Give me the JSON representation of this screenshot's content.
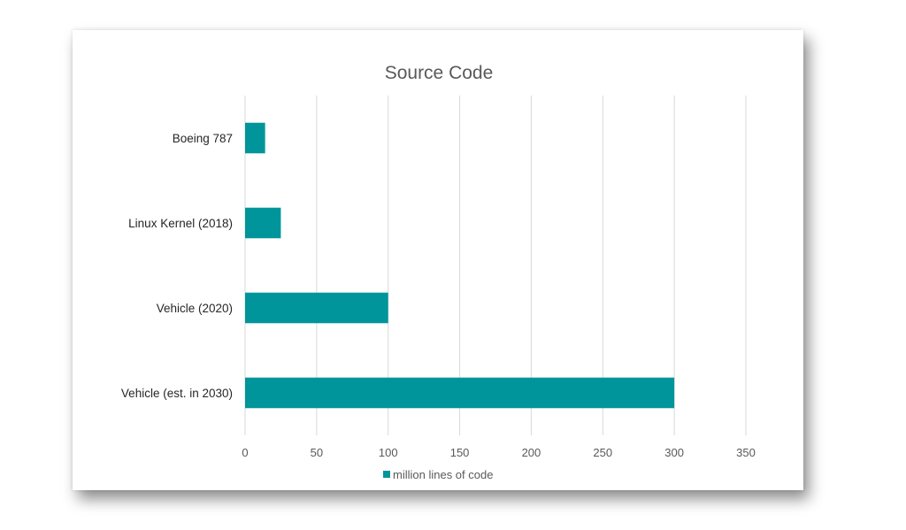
{
  "chart_data": {
    "type": "bar",
    "orientation": "horizontal",
    "title": "Source Code",
    "categories": [
      "Boeing 787",
      "Linux Kernel (2018)",
      "Vehicle (2020)",
      "Vehicle (est. in 2030)"
    ],
    "series": [
      {
        "name": "million lines of code",
        "values": [
          14,
          25,
          100,
          300
        ]
      }
    ],
    "xlim": [
      0,
      350
    ],
    "xticks": [
      "0",
      "50",
      "100",
      "150",
      "200",
      "250",
      "300",
      "350"
    ],
    "grid": true,
    "legend": "bottom",
    "colors": {
      "bar": "#00959a",
      "grid": "#d9d9d9",
      "title": "#595959"
    }
  }
}
